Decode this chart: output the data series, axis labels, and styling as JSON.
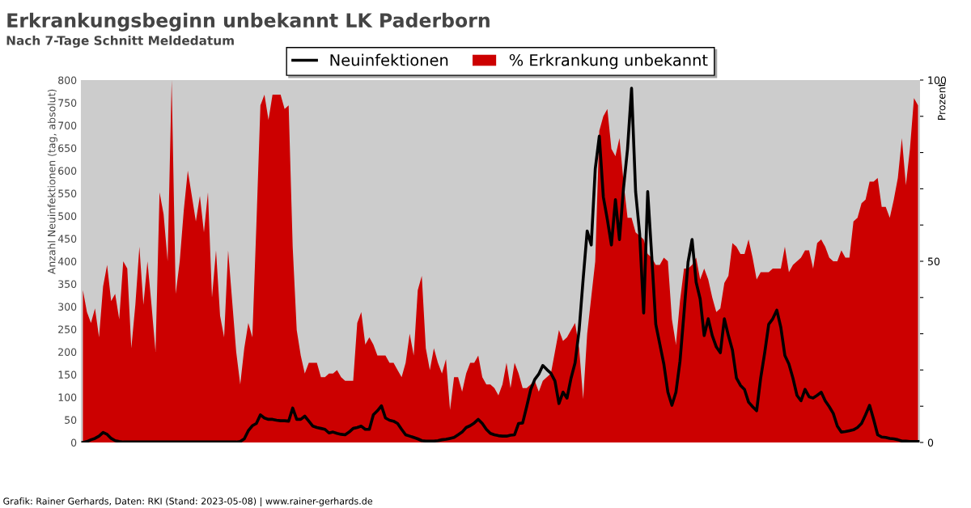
{
  "chart_data": {
    "type": "line",
    "title": "Erkrankungsbeginn unbekannt LK Paderborn",
    "subtitle": "Nach 7-Tage Schnitt Meldedatum",
    "ylabel": "Anzahl Neuinfektionen (tag, absolut)",
    "y2label": "Prozent",
    "annotations": [
      "Grafik: Rainer Gerhards, Daten: RKI (Stand: 2023-05-08) | www.rainer-gerhards.de"
    ],
    "categories": [
      null,
      null,
      null,
      null,
      null,
      null,
      null,
      null,
      null,
      null,
      null,
      null,
      null,
      null,
      null,
      null,
      null,
      null,
      null,
      null,
      null,
      null,
      null,
      null,
      null,
      null,
      null,
      null,
      null,
      null,
      null,
      null,
      null,
      null,
      null,
      null,
      null,
      null,
      null,
      null,
      null,
      null,
      null,
      null,
      null,
      null,
      null,
      null,
      null,
      null,
      null,
      null,
      null,
      null,
      null,
      null,
      null,
      null,
      null,
      null,
      null,
      null,
      null,
      null,
      null,
      null,
      null,
      null,
      null,
      null,
      null,
      null,
      null,
      null,
      null,
      null,
      null,
      null,
      null,
      null,
      null,
      null,
      null,
      null,
      null,
      null,
      null,
      null,
      null,
      null,
      null,
      null,
      null,
      null,
      null,
      null,
      null,
      null,
      null,
      null,
      null,
      null,
      null,
      null,
      null,
      null,
      null,
      null,
      null,
      null,
      null,
      null,
      null,
      null,
      null,
      null,
      null,
      null,
      null,
      null,
      null,
      null,
      null,
      null,
      null,
      null,
      null,
      null,
      null,
      null,
      null,
      null,
      null,
      null,
      null,
      null,
      null,
      null,
      null,
      null,
      null,
      null,
      null,
      null,
      null,
      null,
      null,
      null,
      null,
      null,
      null,
      null,
      null,
      null,
      null,
      null,
      null,
      null,
      null,
      null,
      null,
      null,
      null,
      null,
      null,
      null,
      null,
      null,
      null,
      null,
      null,
      null,
      null,
      null,
      null,
      null,
      null,
      null,
      null,
      null,
      null,
      null,
      null,
      null,
      null,
      null,
      null,
      null,
      null,
      null,
      null,
      null,
      null,
      null,
      null,
      null,
      null,
      null,
      null,
      null,
      null,
      null,
      null,
      null,
      null,
      null,
      null,
      null
    ],
    "series": [
      {
        "name": "% Erkrankung unbekannt",
        "type": "area",
        "axis": "y2",
        "color": "#cc0000",
        "values": [
          42,
          36,
          33,
          37,
          29,
          43,
          49,
          39,
          41,
          34,
          50,
          48,
          26,
          38,
          54,
          38,
          50,
          38,
          25,
          69,
          63,
          50,
          100,
          41,
          50,
          64,
          75,
          68,
          61,
          68,
          58,
          69,
          40,
          53,
          35,
          29,
          53,
          39,
          25,
          16,
          26,
          33,
          29,
          60,
          93,
          96,
          89,
          96,
          96,
          96,
          92,
          93,
          54,
          31,
          24,
          19,
          22,
          22,
          22,
          18,
          18,
          19,
          19,
          20,
          18,
          17,
          17,
          17,
          33,
          36,
          27,
          29,
          27,
          24,
          24,
          24,
          22,
          22,
          20,
          18,
          22,
          30,
          24,
          42,
          46,
          26,
          20,
          26,
          22,
          19,
          23,
          9,
          18,
          18,
          14,
          19,
          22,
          22,
          24,
          18,
          16,
          16,
          15,
          13,
          16,
          22,
          15,
          22,
          19,
          15,
          15,
          16,
          17,
          14,
          17,
          18,
          19,
          25,
          31,
          28,
          29,
          31,
          33,
          26,
          12,
          30,
          40,
          50,
          86,
          90,
          92,
          81,
          79,
          84,
          72,
          62,
          62,
          58,
          57,
          56,
          52,
          51,
          49,
          49,
          51,
          50,
          34,
          27,
          39,
          48,
          48,
          49,
          51,
          45,
          48,
          45,
          40,
          36,
          37,
          44,
          46,
          55,
          54,
          52,
          52,
          56,
          51,
          45,
          47,
          47,
          47,
          48,
          48,
          48,
          54,
          47,
          49,
          50,
          51,
          53,
          53,
          48,
          55,
          56,
          54,
          51,
          50,
          50,
          53,
          51,
          51,
          61,
          62,
          66,
          67,
          72,
          72,
          73,
          65,
          65,
          62,
          67,
          73,
          84,
          71,
          81,
          95,
          93
        ]
      },
      {
        "name": "Neuinfektionen",
        "color": "#000000",
        "values": [
          0,
          2,
          6,
          9,
          14,
          22,
          18,
          9,
          4,
          2,
          1,
          1,
          1,
          1,
          1,
          1,
          1,
          1,
          1,
          1,
          1,
          1,
          1,
          1,
          1,
          1,
          1,
          1,
          1,
          1,
          1,
          1,
          1,
          1,
          1,
          1,
          1,
          1,
          1,
          2,
          8,
          26,
          37,
          42,
          61,
          54,
          51,
          51,
          49,
          48,
          48,
          47,
          76,
          51,
          51,
          58,
          47,
          36,
          33,
          31,
          29,
          21,
          23,
          20,
          18,
          17,
          23,
          31,
          33,
          36,
          29,
          29,
          61,
          70,
          81,
          54,
          49,
          47,
          42,
          29,
          17,
          14,
          11,
          8,
          4,
          3,
          3,
          3,
          4,
          6,
          7,
          9,
          11,
          17,
          23,
          33,
          37,
          43,
          51,
          42,
          29,
          20,
          17,
          15,
          14,
          14,
          16,
          17,
          42,
          43,
          79,
          117,
          139,
          151,
          170,
          161,
          153,
          136,
          86,
          111,
          98,
          142,
          176,
          248,
          361,
          467,
          436,
          604,
          676,
          542,
          492,
          436,
          536,
          448,
          561,
          648,
          782,
          554,
          461,
          286,
          554,
          411,
          261,
          217,
          173,
          111,
          82,
          111,
          179,
          286,
          398,
          448,
          354,
          317,
          236,
          273,
          236,
          211,
          198,
          273,
          236,
          204,
          142,
          126,
          117,
          89,
          79,
          70,
          142,
          198,
          261,
          273,
          292,
          254,
          192,
          173,
          142,
          104,
          92,
          117,
          101,
          98,
          104,
          111,
          92,
          79,
          64,
          36,
          23,
          24,
          26,
          28,
          33,
          42,
          61,
          82,
          51,
          17,
          12,
          11,
          9,
          8,
          6,
          3,
          3,
          2,
          2,
          2
        ]
      }
    ],
    "ylim": [
      0,
      800
    ],
    "yticks": [
      0,
      50,
      100,
      150,
      200,
      250,
      300,
      350,
      400,
      450,
      500,
      550,
      600,
      650,
      700,
      750,
      800
    ],
    "y2lim": [
      0,
      100
    ],
    "y2ticks": [
      0,
      {
        "value": 10,
        "label": null
      },
      {
        "value": 20,
        "label": null
      },
      {
        "value": 30,
        "label": null
      },
      {
        "value": 40,
        "label": null
      },
      50,
      {
        "value": 60,
        "label": null
      },
      {
        "value": 70,
        "label": null
      },
      {
        "value": 80,
        "label": null
      },
      {
        "value": 90,
        "label": null
      },
      100
    ],
    "grid": false,
    "legend": "top",
    "marker": "none",
    "line_style": "solid"
  }
}
